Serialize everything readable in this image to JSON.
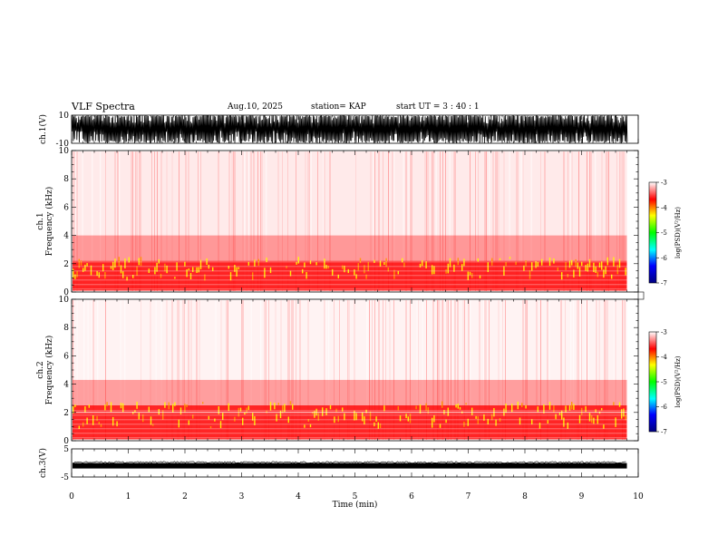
{
  "header": {
    "title": "VLF Spectra",
    "date": "Aug.10, 2025",
    "station": "station= KAP",
    "start": "start  UT =  3 : 40 : 1"
  },
  "colorbar": {
    "label": "log(PSD)(V²/Hz)",
    "ticks": [
      "-3",
      "-4",
      "-5",
      "-6",
      "-7"
    ],
    "stops": [
      "#ffffff",
      "#ff0000",
      "#ffff00",
      "#00ff00",
      "#00ffff",
      "#0000ff",
      "#000080"
    ]
  },
  "chart_data": [
    {
      "type": "line",
      "panel": "ch.1 waveform",
      "ylabel": "ch.1(V)",
      "ylim": [
        -10,
        10
      ],
      "yticks": [
        "10",
        "-10"
      ],
      "xlim": [
        0,
        10
      ],
      "description_values": "saturated noise between -10 and 10 V over 0 - 9.8 min"
    },
    {
      "type": "heatmap",
      "panel": "ch.1 spectrogram",
      "ylabel": "ch.1 Frequency (kHz)",
      "ylabel_line1": "ch.1",
      "ylabel_line2": "Frequency (kHz)",
      "ylim": [
        0,
        10
      ],
      "yticks": [
        "0",
        "2",
        "4",
        "6",
        "8",
        "10"
      ],
      "xlim": [
        0,
        10
      ],
      "data_end_min": 9.8,
      "band_khz": [
        0.5,
        2.2
      ],
      "band_level": -3.5
    },
    {
      "type": "heatmap",
      "panel": "ch.2 spectrogram",
      "ylabel": "ch.2 Frequency (kHz)",
      "ylabel_line1": "ch.2",
      "ylabel_line2": "Frequency (kHz)",
      "ylim": [
        0,
        10
      ],
      "yticks": [
        "0",
        "2",
        "4",
        "6",
        "8",
        "10"
      ],
      "xlim": [
        0,
        10
      ],
      "data_end_min": 9.8,
      "band_khz": [
        0.5,
        2.5
      ],
      "band_level": -3.5
    },
    {
      "type": "line",
      "panel": "ch.3 waveform",
      "ylabel": "ch.3(V)",
      "ylim": [
        -5,
        5
      ],
      "yticks": [
        "5",
        "-5"
      ],
      "xlim": [
        0,
        10
      ],
      "baseline_v": -1
    }
  ],
  "xaxis": {
    "label": "Time  (min)",
    "ticks": [
      "0",
      "1",
      "2",
      "3",
      "4",
      "5",
      "6",
      "7",
      "8",
      "9",
      "10"
    ]
  }
}
